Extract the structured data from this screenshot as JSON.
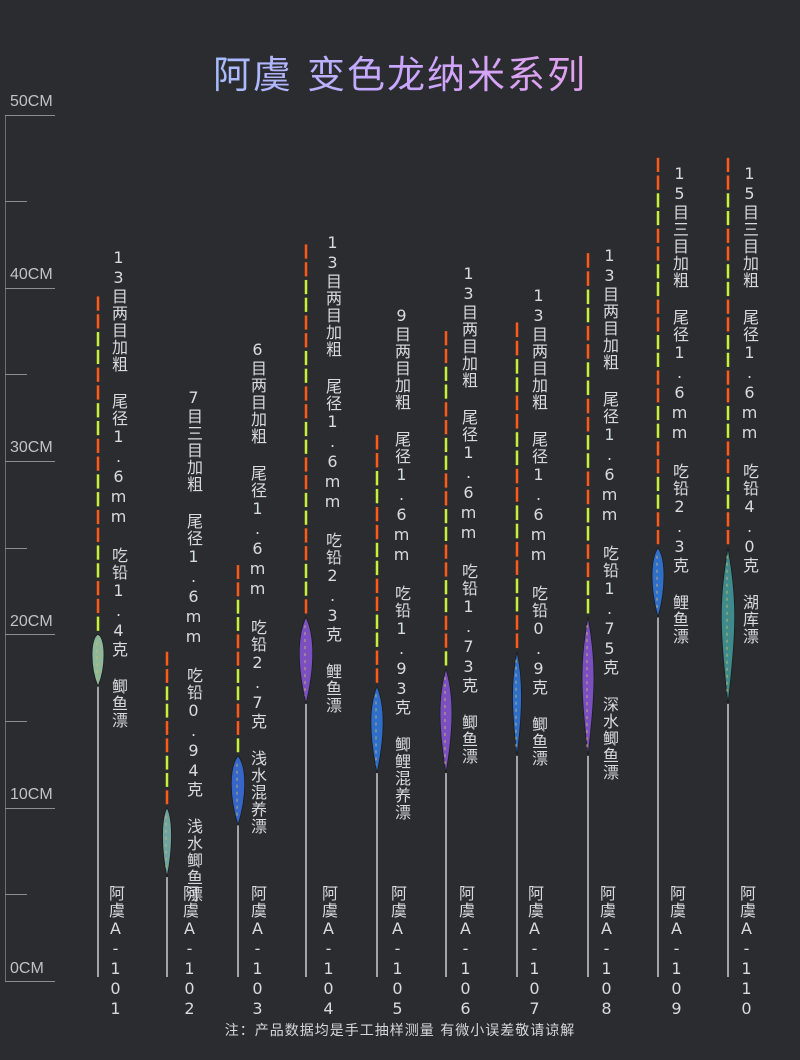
{
  "title": "阿虞  变色龙纳米系列",
  "ruler": {
    "unit": "CM",
    "labels": [
      "50CM",
      "40CM",
      "30CM",
      "20CM",
      "10CM",
      "0CM"
    ]
  },
  "floats": [
    {
      "model": "阿虞A-101",
      "spec": "13目两目加粗  尾径1.6mm  吃铅1.4克  鲫鱼漂",
      "body_color": "#8fb79a",
      "length_cm": 39.5
    },
    {
      "model": "阿虞A-102",
      "spec": "7目三目加粗  尾径1.6mm  吃铅0.94克  浅水鲫鱼漂",
      "body_color": "#6fa3a0",
      "length_cm": 19
    },
    {
      "model": "阿虞A-103",
      "spec": "6目两目加粗  尾径1.6mm  吃铅2.7克  浅水混养漂",
      "body_color": "#3566c8",
      "length_cm": 24
    },
    {
      "model": "阿虞A-104",
      "spec": "13目两目加粗  尾径1.6mm  吃铅2.3克  鲤鱼漂",
      "body_color": "#7a4fbf",
      "length_cm": 42.5
    },
    {
      "model": "阿虞A-105",
      "spec": "9目两目加粗  尾径1.6mm  吃铅1.93克  鲫鲤混养漂",
      "body_color": "#2f6fc9",
      "length_cm": 31.5
    },
    {
      "model": "阿虞A-106",
      "spec": "13目两目加粗  尾径1.6mm  吃铅1.73克  鲫鱼漂",
      "body_color": "#7a4fbf",
      "length_cm": 37.5
    },
    {
      "model": "阿虞A-107",
      "spec": "13目两目加粗  尾径1.6mm  吃铅0.9克  鲫鱼漂",
      "body_color": "#2f6fc9",
      "length_cm": 38
    },
    {
      "model": "阿虞A-108",
      "spec": "13目两目加粗  尾径1.6mm  吃铅1.75克  深水鲫鱼漂",
      "body_color": "#7a4fbf",
      "length_cm": 42
    },
    {
      "model": "阿虞A-109",
      "spec": "15目三目加粗  尾径1.6mm  吃铅2.3克  鲤鱼漂",
      "body_color": "#2f6fc9",
      "length_cm": 47.5
    },
    {
      "model": "阿虞A-110",
      "spec": "15目三目加粗  尾径1.6mm  吃铅4.0克  湖库漂",
      "body_color": "#3f8a8a",
      "length_cm": 47.5
    }
  ],
  "colors": {
    "tip_orange": "#ff5a1a",
    "tip_green": "#c8f03a",
    "stem": "#c9ccd0"
  },
  "note": "注：产品数据均是手工抽样测量 有微小误差敬请谅解"
}
